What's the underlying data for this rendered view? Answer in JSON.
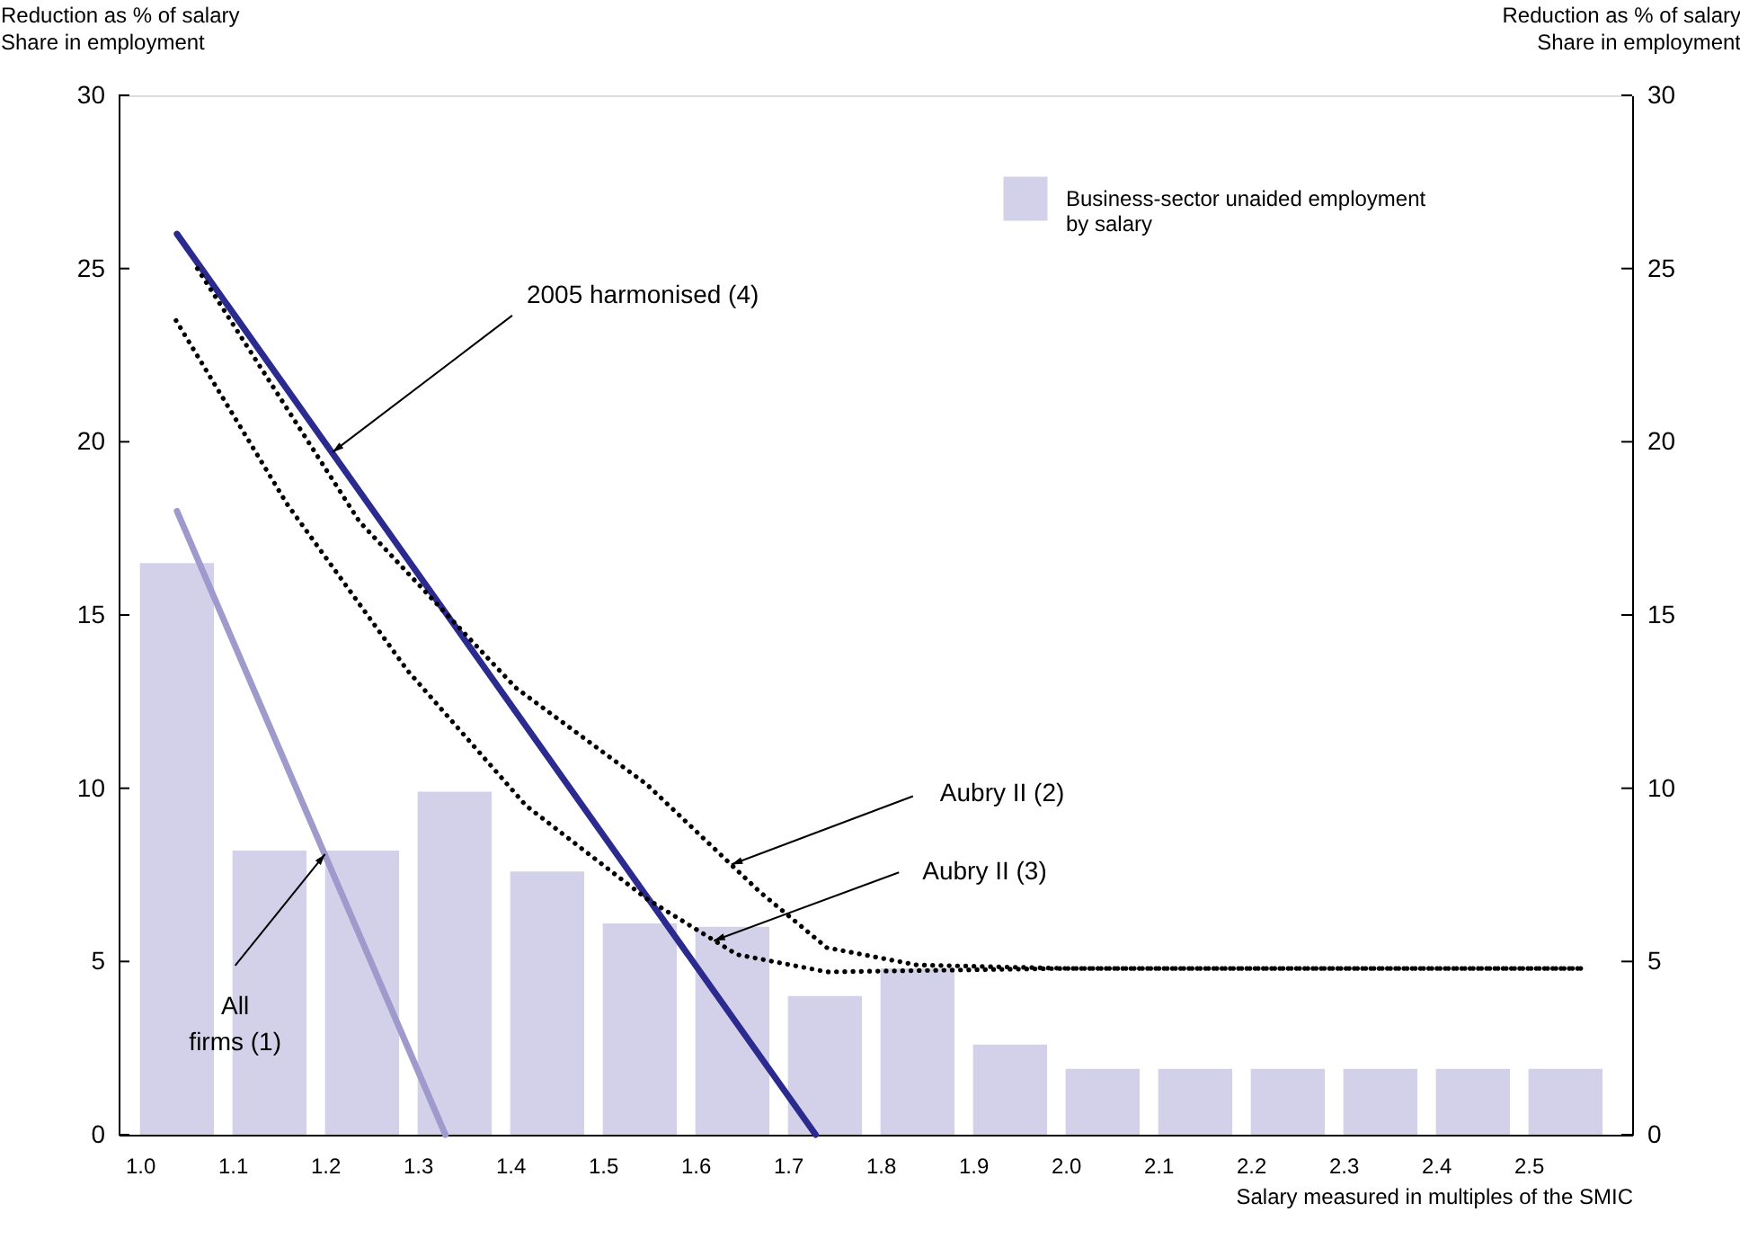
{
  "chart_data": {
    "type": "bar",
    "xlabel": "Salary measured in multiples of the SMIC",
    "ylabel": "Reduction as % of salary\nShare in employment",
    "y2label": "Reduction as % of salary\nShare in employment",
    "xlim": [
      0.977,
      2.612
    ],
    "xticks": [
      {
        "value": 1.0,
        "label": "1.0"
      },
      {
        "value": 1.1,
        "label": "1.1"
      },
      {
        "value": 1.2,
        "label": "1.2"
      },
      {
        "value": 1.3,
        "label": "1.3"
      },
      {
        "value": 1.4,
        "label": "1.4"
      },
      {
        "value": 1.5,
        "label": "1.5"
      },
      {
        "value": 1.6,
        "label": "1.6"
      },
      {
        "value": 1.7,
        "label": "1.7"
      },
      {
        "value": 1.8,
        "label": "1.8"
      },
      {
        "value": 1.9,
        "label": "1.9"
      },
      {
        "value": 2.0,
        "label": "2.0"
      },
      {
        "value": 2.1,
        "label": "2.1"
      },
      {
        "value": 2.2,
        "label": "2.2"
      },
      {
        "value": 2.3,
        "label": "2.3"
      },
      {
        "value": 2.4,
        "label": "2.4"
      },
      {
        "value": 2.5,
        "label": "2.5"
      }
    ],
    "ylim": [
      0,
      30
    ],
    "yticks": [
      0,
      5,
      10,
      15,
      20,
      25,
      30
    ],
    "y2lim": [
      0,
      30
    ],
    "y2ticks": [
      0,
      5,
      10,
      15,
      20,
      25,
      30
    ],
    "grid": false,
    "legend": "top right",
    "series": [
      {
        "name": "Business-sector unaided employment by salary",
        "color": "#d3d1ea",
        "x": [
          1.04,
          1.14,
          1.24,
          1.34,
          1.44,
          1.54,
          1.64,
          1.74,
          1.84,
          1.94,
          2.04,
          2.14,
          2.24,
          2.34,
          2.44,
          2.54
        ],
        "values": [
          16.5,
          8.2,
          8.2,
          9.9,
          7.6,
          6.1,
          6.0,
          4.0,
          4.8,
          2.6,
          1.9,
          1.9,
          1.9,
          1.9,
          1.9,
          1.9
        ]
      },
      {
        "type": "line",
        "color": "#9e9acb",
        "line_style": "solid",
        "x": [
          1.04,
          1.33
        ],
        "values": [
          18,
          0
        ]
      },
      {
        "type": "line",
        "color": "#2b2b8f",
        "line_style": "solid",
        "x": [
          1.04,
          1.73
        ],
        "values": [
          26,
          0
        ]
      },
      {
        "type": "line",
        "color": "#000000",
        "line_style": "dotted",
        "x": [
          1.062,
          1.237,
          1.406,
          1.548,
          1.67,
          1.742,
          1.839,
          2.0,
          2.557
        ],
        "values": [
          25.0,
          17.7,
          12.9,
          10.1,
          7.0,
          5.4,
          4.9,
          4.8,
          4.8
        ]
      },
      {
        "type": "line",
        "color": "#000000",
        "line_style": "dotted",
        "x": [
          1.039,
          1.159,
          1.289,
          1.417,
          1.548,
          1.645,
          1.742,
          2.0,
          2.557
        ],
        "values": [
          23.5,
          18.2,
          13.4,
          9.5,
          6.8,
          5.2,
          4.7,
          4.8,
          4.8
        ]
      }
    ],
    "annotations": [
      {
        "text": "2005 harmonised (4)",
        "x": 1.208,
        "y": 19.7
      },
      {
        "text": "Aubry II (2)",
        "x": 1.639,
        "y": 7.8
      },
      {
        "text": "Aubry II (3)",
        "x": 1.62,
        "y": 5.6
      },
      {
        "text": "All firms (1)",
        "x": 1.2,
        "y": 8.1
      }
    ]
  }
}
